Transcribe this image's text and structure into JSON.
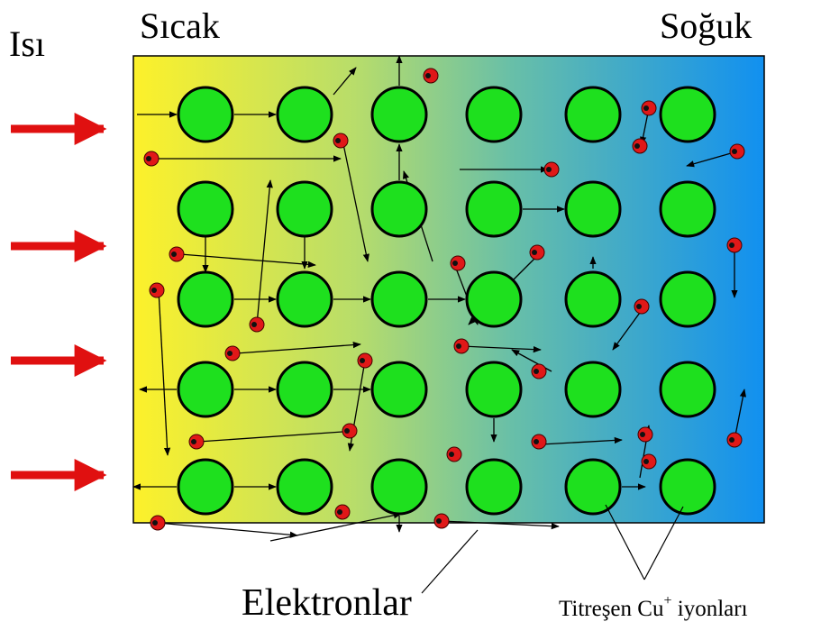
{
  "labels": {
    "heat": "Isı",
    "hot": "Sıcak",
    "cold": "Soğuk",
    "electrons": "Elektronlar",
    "ions": {
      "word": "Titreşen",
      "element": "Cu",
      "charge": "+",
      "suffix": "iyonları"
    }
  }
}
